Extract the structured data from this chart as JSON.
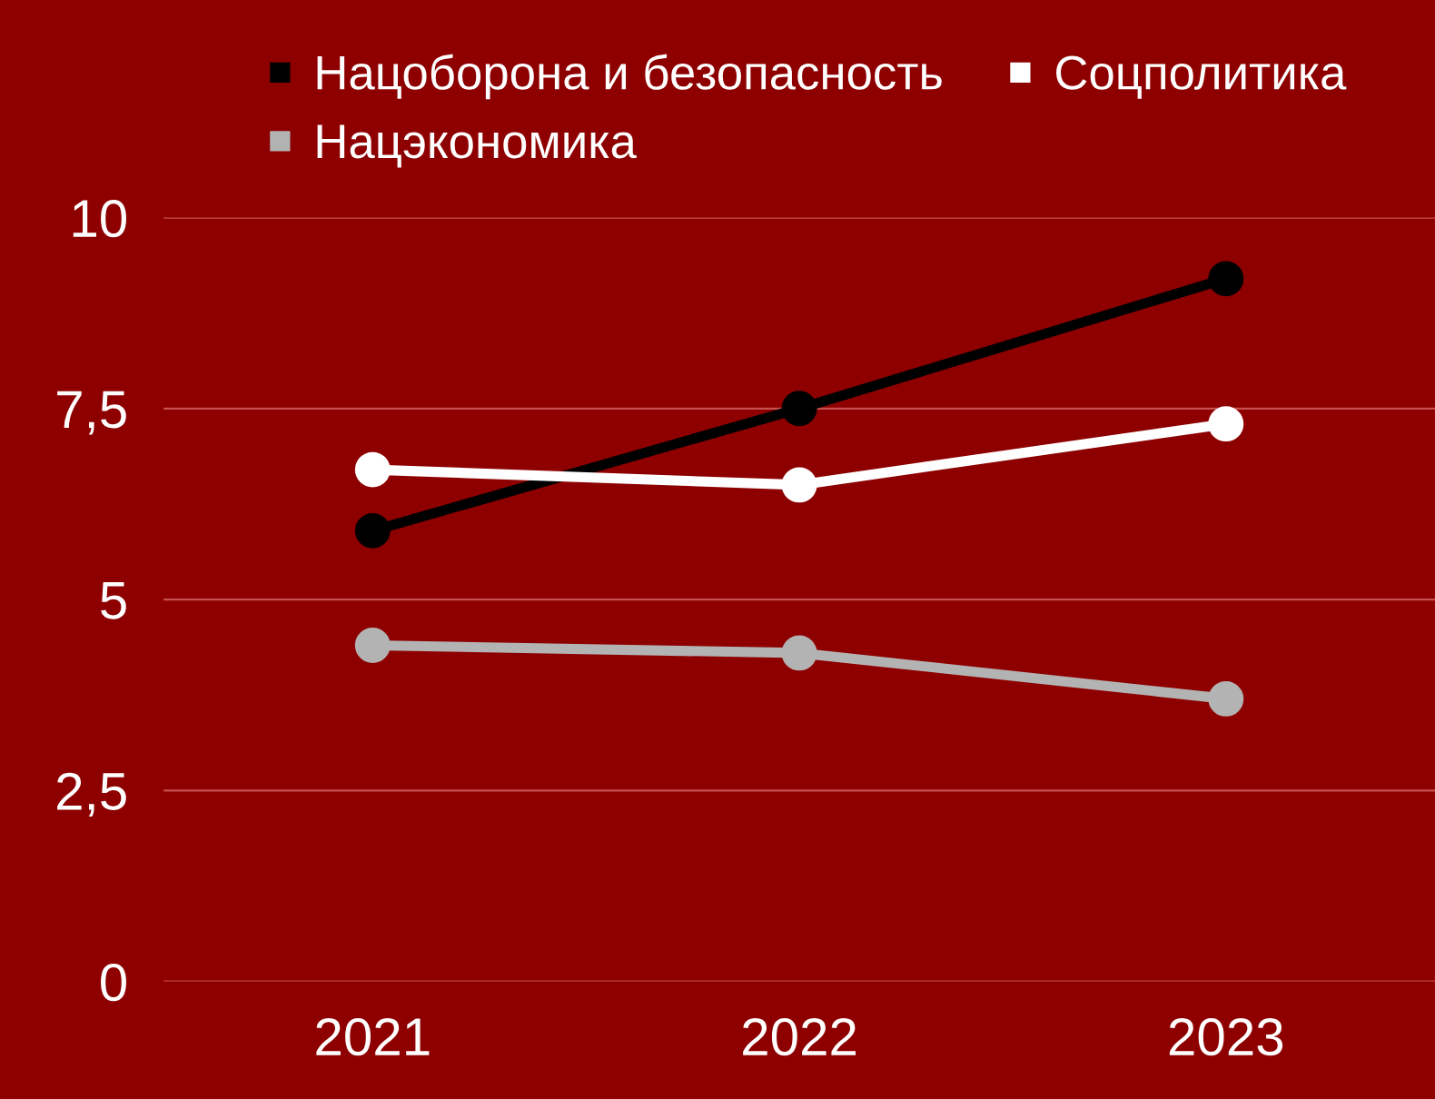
{
  "chart_data": {
    "type": "line",
    "categories": [
      "2021",
      "2022",
      "2023"
    ],
    "series": [
      {
        "name": "Нацоборона и безопасность",
        "color": "#000000",
        "values": [
          5.9,
          7.5,
          9.2
        ]
      },
      {
        "name": "Нацэкономика",
        "color": "#b3b3b3",
        "values": [
          4.4,
          4.3,
          3.7
        ]
      },
      {
        "name": "Соцполитика",
        "color": "#ffffff",
        "values": [
          6.7,
          6.5,
          7.3
        ]
      }
    ],
    "ylim": [
      0,
      10
    ],
    "yticks": [
      0,
      {
        "value": 2.5,
        "label": "2,5"
      },
      5,
      {
        "value": 7.5,
        "label": "7,5"
      },
      10
    ],
    "grid": "y",
    "legend": "top",
    "marker": "circle",
    "line_style": "solid"
  }
}
